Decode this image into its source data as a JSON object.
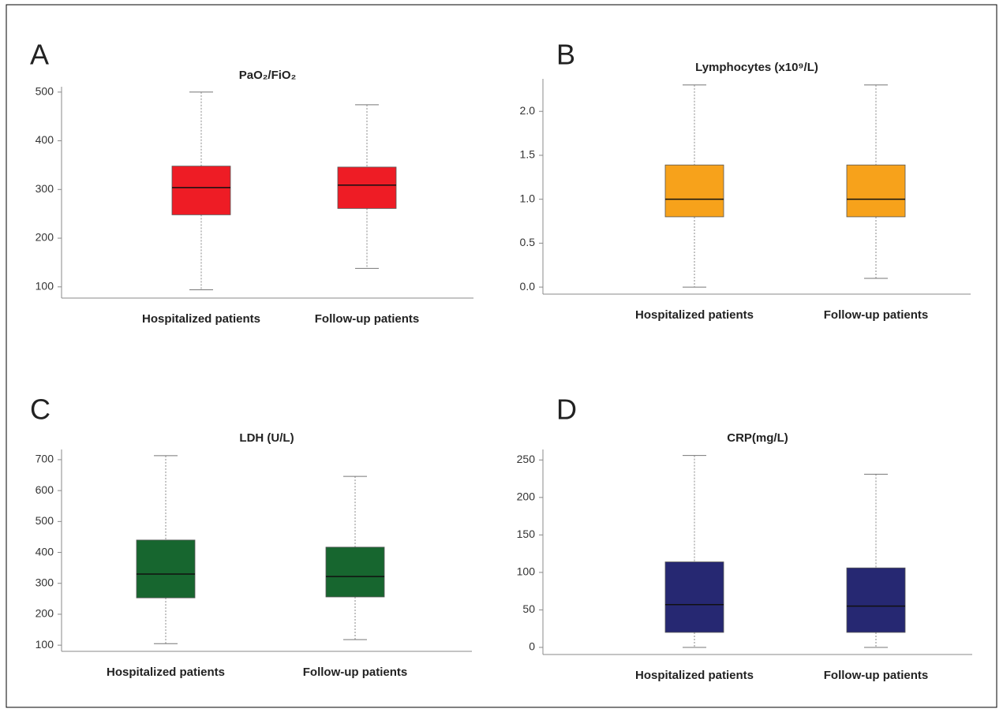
{
  "chart_data": [
    {
      "type": "box",
      "panel": "A",
      "title": "PaO₂/FiO₂",
      "color": "#ee1c25",
      "categories": [
        "Hospitalized patients",
        "Follow-up  patients"
      ],
      "boxes": [
        {
          "min": 94,
          "q1": 248,
          "median": 304,
          "q3": 348,
          "max": 500
        },
        {
          "min": 138,
          "q1": 261,
          "median": 309,
          "q3": 346,
          "max": 474
        }
      ],
      "ylim": [
        77,
        511
      ],
      "yticks": [
        100,
        200,
        300,
        400,
        500
      ]
    },
    {
      "type": "box",
      "panel": "B",
      "title": "Lymphocytes (x10⁹/L)",
      "color": "#f7a21b",
      "categories": [
        "Hospitalized patients",
        "Follow-up  patients"
      ],
      "boxes": [
        {
          "min": 0.0,
          "q1": 0.8,
          "median": 1.0,
          "q3": 1.39,
          "max": 2.3
        },
        {
          "min": 0.1,
          "q1": 0.8,
          "median": 1.0,
          "q3": 1.39,
          "max": 2.3
        }
      ],
      "ylim": [
        -0.08,
        2.37
      ],
      "yticks": [
        {
          "value": 0,
          "label": "0.0"
        },
        0.5,
        {
          "value": 1,
          "label": "1.0"
        },
        1.5,
        {
          "value": 2,
          "label": "2.0"
        }
      ]
    },
    {
      "type": "box",
      "panel": "C",
      "title": "LDH (U/L)",
      "color": "#17662f",
      "categories": [
        "Hospitalized patients",
        "Follow-up  patients"
      ],
      "boxes": [
        {
          "min": 105,
          "q1": 253,
          "median": 330,
          "q3": 440,
          "max": 713
        },
        {
          "min": 118,
          "q1": 256,
          "median": 322,
          "q3": 417,
          "max": 646
        }
      ],
      "ylim": [
        80,
        733
      ],
      "yticks": [
        100,
        200,
        300,
        400,
        500,
        600,
        700
      ]
    },
    {
      "type": "box",
      "panel": "D",
      "title": "CRP(mg/L)",
      "color": "#262872",
      "categories": [
        "Hospitalized patients",
        "Follow-up  patients"
      ],
      "boxes": [
        {
          "min": 0,
          "q1": 20,
          "median": 57,
          "q3": 114,
          "max": 256
        },
        {
          "min": 0,
          "q1": 20,
          "median": 55,
          "q3": 106,
          "max": 231
        }
      ],
      "ylim": [
        -9.5,
        264
      ],
      "yticks": [
        0,
        50,
        100,
        150,
        200,
        250
      ]
    }
  ]
}
